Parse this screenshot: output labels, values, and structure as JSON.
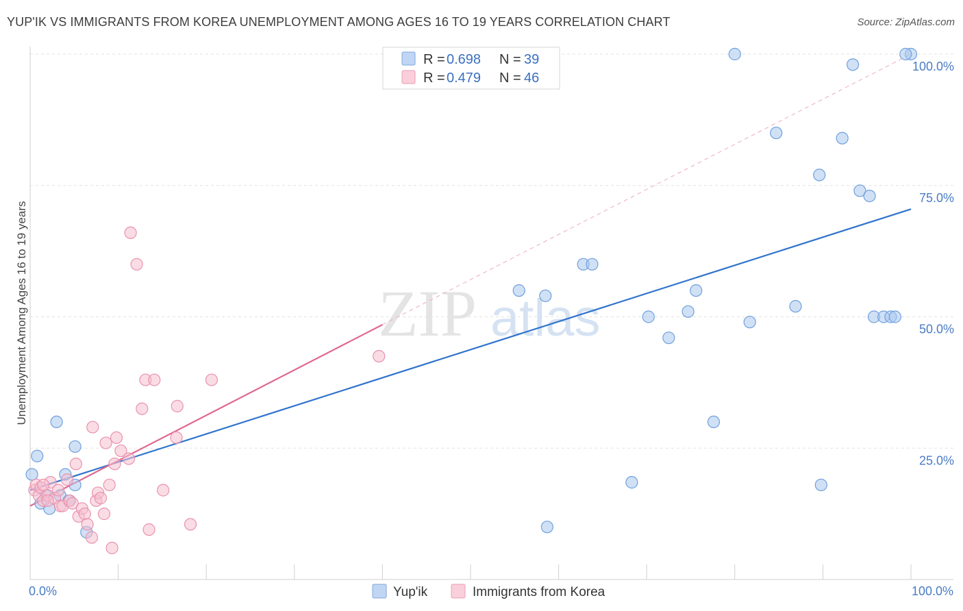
{
  "title": "YUP'IK VS IMMIGRANTS FROM KOREA UNEMPLOYMENT AMONG AGES 16 TO 19 YEARS CORRELATION CHART",
  "source": "Source: ZipAtlas.com",
  "watermark": {
    "zip": "ZIP",
    "atlas": "atlas"
  },
  "legend_top": [
    {
      "r_label": "R = ",
      "r_value": "0.698",
      "n_label": "N = ",
      "n_value": "39"
    },
    {
      "r_label": "R = ",
      "r_value": "0.479",
      "n_label": "N = ",
      "n_value": "46"
    }
  ],
  "chart_data": {
    "type": "scatter",
    "title": "YUP'IK VS IMMIGRANTS FROM KOREA UNEMPLOYMENT AMONG AGES 16 TO 19 YEARS CORRELATION CHART",
    "xlabel": "",
    "ylabel": "Unemployment Among Ages 16 to 19 years",
    "xlim": [
      0,
      100
    ],
    "ylim": [
      0,
      100
    ],
    "x_tick_labels": [
      {
        "value": 0,
        "label": "0.0%"
      },
      {
        "value": 100,
        "label": "100.0%"
      }
    ],
    "y_tick_labels": [
      {
        "value": 25,
        "label": "25.0%"
      },
      {
        "value": 50,
        "label": "50.0%"
      },
      {
        "value": 75,
        "label": "75.0%"
      },
      {
        "value": 100,
        "label": "100.0%"
      }
    ],
    "series": [
      {
        "name": "Yup'ik",
        "color": "#a9c8ef",
        "stroke": "#6f9fdc",
        "line_color": "#2f73cc",
        "R": 0.698,
        "N": 39,
        "trend": {
          "x0": 0,
          "y0": 17,
          "x1": 100,
          "y1": 70.5
        },
        "points": [
          [
            0.2,
            20
          ],
          [
            0.8,
            23.5
          ],
          [
            1.2,
            14.5
          ],
          [
            1.8,
            16
          ],
          [
            2.2,
            13.5
          ],
          [
            3,
            30
          ],
          [
            3.4,
            16
          ],
          [
            4,
            20
          ],
          [
            4.4,
            15
          ],
          [
            5.1,
            25.3
          ],
          [
            5.1,
            18
          ],
          [
            6.4,
            9
          ],
          [
            55.5,
            55
          ],
          [
            58.5,
            54
          ],
          [
            62.8,
            60
          ],
          [
            63.8,
            60
          ],
          [
            58.7,
            10
          ],
          [
            70.2,
            50
          ],
          [
            68.3,
            18.5
          ],
          [
            72.5,
            46
          ],
          [
            74.7,
            51
          ],
          [
            75.6,
            55
          ],
          [
            77.6,
            30
          ],
          [
            81.7,
            49
          ],
          [
            84.7,
            85
          ],
          [
            86.9,
            52
          ],
          [
            89.6,
            77
          ],
          [
            89.8,
            18
          ],
          [
            92.2,
            84
          ],
          [
            93.4,
            98
          ],
          [
            94.2,
            74
          ],
          [
            95.3,
            73
          ],
          [
            95.8,
            50
          ],
          [
            96.9,
            50
          ],
          [
            97.7,
            50
          ],
          [
            98.2,
            50
          ],
          [
            100,
            100
          ],
          [
            99.4,
            100
          ],
          [
            80.0,
            100
          ]
        ]
      },
      {
        "name": "Immigrants from Korea",
        "color": "#f6bfd0",
        "stroke": "#e992ae",
        "line_color": "#e06890",
        "R": 0.479,
        "N": 46,
        "trend": {
          "x0": 0,
          "y0": 14,
          "x1": 40,
          "y1": 48.5
        },
        "trend_extension": {
          "x0": 40,
          "y0": 48.5,
          "x1": 100,
          "y1": 100
        },
        "points": [
          [
            0.5,
            17
          ],
          [
            0.7,
            18
          ],
          [
            1,
            16
          ],
          [
            1.2,
            17.5
          ],
          [
            1.5,
            15
          ],
          [
            2,
            16
          ],
          [
            2.3,
            18.5
          ],
          [
            2.8,
            15.5
          ],
          [
            3.2,
            17
          ],
          [
            3.4,
            14
          ],
          [
            3.7,
            14
          ],
          [
            4.2,
            19
          ],
          [
            4.5,
            15
          ],
          [
            4.8,
            14.5
          ],
          [
            5.2,
            22
          ],
          [
            5.5,
            12
          ],
          [
            5.9,
            13.5
          ],
          [
            6.2,
            12.5
          ],
          [
            6.5,
            10.5
          ],
          [
            7,
            8
          ],
          [
            7.1,
            29
          ],
          [
            7.5,
            15
          ],
          [
            7.7,
            16.5
          ],
          [
            8,
            15.5
          ],
          [
            8.4,
            12.5
          ],
          [
            8.6,
            26
          ],
          [
            9,
            18
          ],
          [
            9.3,
            6
          ],
          [
            9.8,
            27
          ],
          [
            9.6,
            22
          ],
          [
            10.3,
            24.5
          ],
          [
            11.2,
            23
          ],
          [
            11.4,
            66
          ],
          [
            12.1,
            60
          ],
          [
            12.7,
            32.5
          ],
          [
            13.1,
            38
          ],
          [
            13.5,
            9.5
          ],
          [
            14.1,
            38
          ],
          [
            15.1,
            17
          ],
          [
            16.7,
            33
          ],
          [
            16.6,
            27
          ],
          [
            18.2,
            10.5
          ],
          [
            20.6,
            38
          ],
          [
            39.6,
            42.5
          ],
          [
            1.5,
            18
          ],
          [
            2,
            15
          ]
        ]
      }
    ],
    "grid": true,
    "diagonal_reference": true
  },
  "legend_bottom": [
    {
      "label": "Yup'ik"
    },
    {
      "label": "Immigrants from Korea"
    }
  ]
}
